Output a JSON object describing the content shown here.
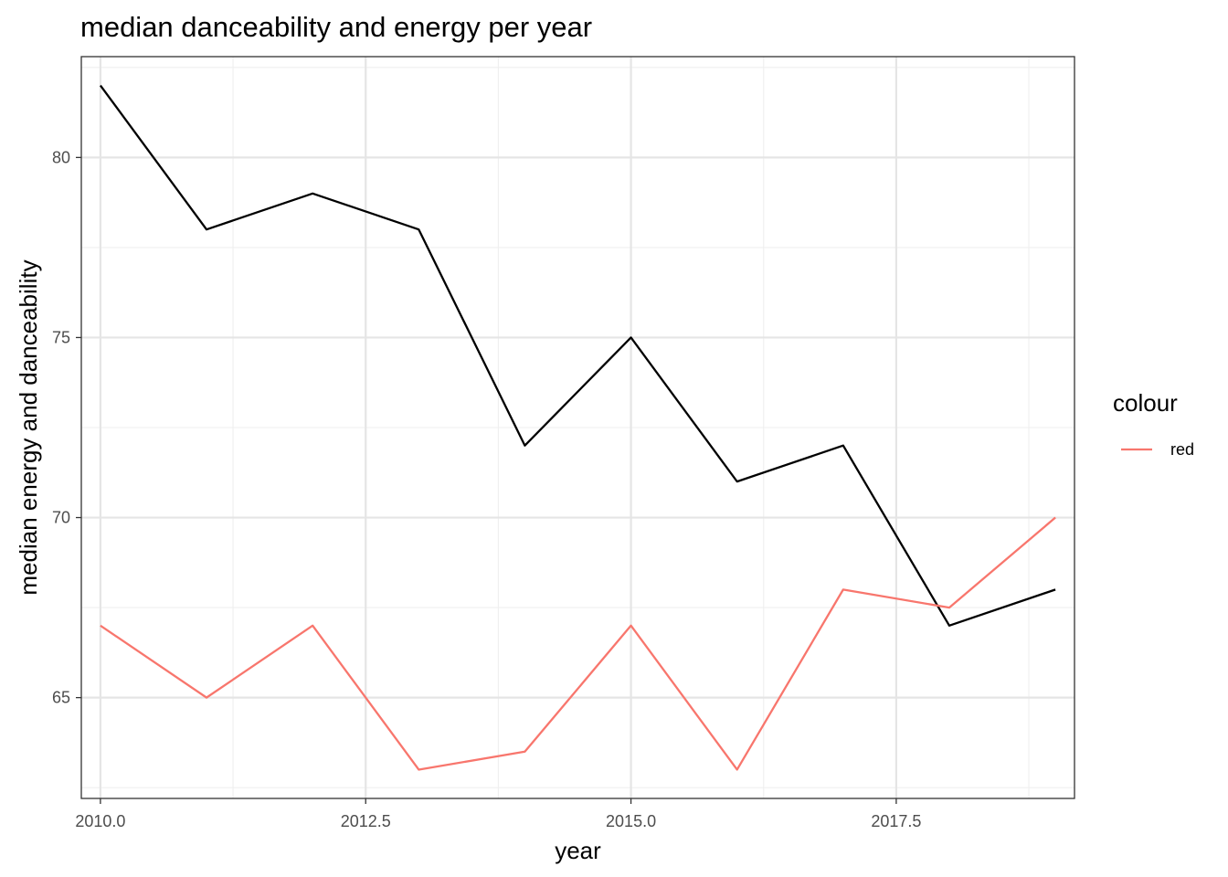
{
  "chart_data": {
    "type": "line",
    "title": "median danceability and energy per year",
    "xlabel": "year",
    "ylabel": "median energy and danceability",
    "xlim": [
      2009.82,
      2019.18
    ],
    "ylim": [
      62.2,
      82.8
    ],
    "x_ticks": [
      2010.0,
      2012.5,
      2015.0,
      2017.5
    ],
    "x_tick_labels": [
      "2010.0",
      "2012.5",
      "2015.0",
      "2017.5"
    ],
    "y_ticks": [
      65,
      70,
      75,
      80
    ],
    "y_tick_labels": [
      "65",
      "70",
      "75",
      "80"
    ],
    "grid": true,
    "x": [
      2010,
      2011,
      2012,
      2013,
      2014,
      2015,
      2016,
      2017,
      2018,
      2019
    ],
    "series": [
      {
        "name": "",
        "color": "#000000",
        "in_legend": false,
        "values": [
          82,
          78,
          79,
          78,
          72,
          75,
          71,
          72,
          67,
          68
        ]
      },
      {
        "name": "red",
        "color": "#F8766D",
        "in_legend": true,
        "values": [
          67,
          65,
          67,
          63,
          63.5,
          67,
          63,
          68,
          67.5,
          70
        ]
      }
    ],
    "legend": {
      "title": "colour",
      "position": "right"
    }
  }
}
